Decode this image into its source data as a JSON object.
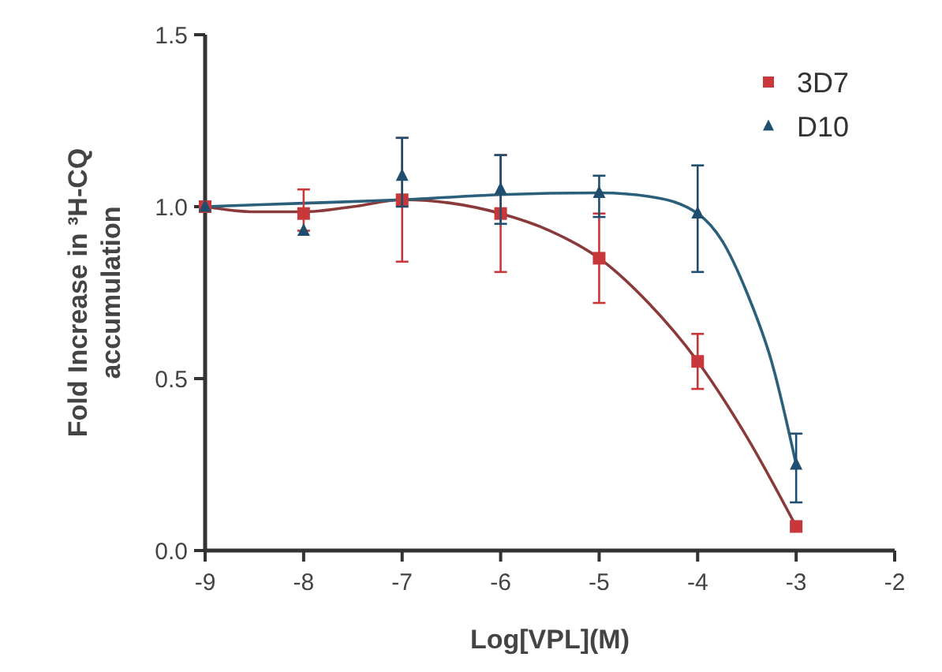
{
  "chart_data": {
    "type": "scatter",
    "xlabel": "Log[VPL](M)",
    "ylabel": "Fold Increase in ³H-CQ accumulation",
    "xlim": [
      -9,
      -2
    ],
    "xticks": [
      -9,
      -8,
      -7,
      -6,
      -5,
      -4,
      -3,
      -2
    ],
    "ylim": [
      0,
      1.5
    ],
    "yticks": [
      {
        "value": 0,
        "label": "0.0"
      },
      {
        "value": 0.5,
        "label": "0.5"
      },
      {
        "value": 1,
        "label": "1.0"
      },
      {
        "value": 1.5,
        "label": "1.5"
      }
    ],
    "grid": false,
    "legend": "top right",
    "series": [
      {
        "type": "line",
        "color": "#8a3a3a",
        "x": [
          -9,
          -8.5,
          -8,
          -7.5,
          -7,
          -6.5,
          -6,
          -5.5,
          -5,
          -4.5,
          -4,
          -3.5,
          -3
        ],
        "values": [
          1.0,
          0.985,
          0.985,
          1.0,
          1.02,
          1.01,
          0.98,
          0.93,
          0.85,
          0.72,
          0.55,
          0.33,
          0.07
        ]
      },
      {
        "type": "line",
        "color": "#2b5f7a",
        "x": [
          -9,
          -8,
          -7,
          -6,
          -5,
          -4.5,
          -4,
          -3.75,
          -3.5,
          -3.25,
          -3
        ],
        "values": [
          1.0,
          1.01,
          1.02,
          1.035,
          1.04,
          1.03,
          0.98,
          0.9,
          0.75,
          0.55,
          0.25
        ]
      },
      {
        "name": "3D7",
        "color": "#c8373a",
        "marker": "square",
        "x": [
          -9,
          -8,
          -7,
          -6,
          -5,
          -4,
          -3
        ],
        "values": [
          1.0,
          0.98,
          1.02,
          0.98,
          0.85,
          0.55,
          0.07
        ],
        "errors": [
          null,
          [
            0.93,
            1.05
          ],
          [
            0.84,
            1.2
          ],
          [
            0.81,
            1.15
          ],
          [
            0.72,
            0.98
          ],
          [
            0.47,
            0.63
          ],
          null
        ]
      },
      {
        "name": "D10",
        "color": "#1f4e6e",
        "marker": "triangle",
        "x": [
          -9,
          -8,
          -7,
          -6,
          -5,
          -4,
          -3
        ],
        "values": [
          1.0,
          0.93,
          1.09,
          1.05,
          1.04,
          0.98,
          0.25
        ],
        "errors": [
          null,
          null,
          [
            1.0,
            1.2
          ],
          [
            0.95,
            1.15
          ],
          [
            0.97,
            1.09
          ],
          [
            0.81,
            1.12
          ],
          [
            0.14,
            0.34
          ]
        ]
      }
    ]
  }
}
